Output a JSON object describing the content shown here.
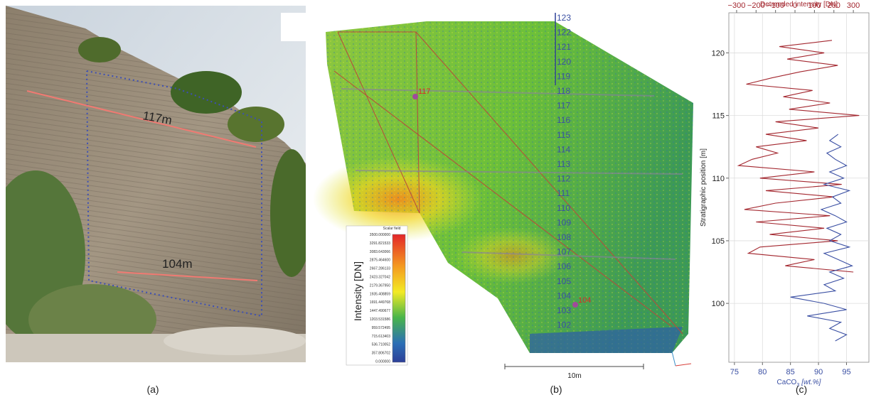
{
  "panel_a": {
    "label": "(a)",
    "annotations": [
      "117m",
      "104m"
    ]
  },
  "panel_b": {
    "label": "(b)",
    "markers": [
      "117",
      "104"
    ],
    "strat_labels": [
      123,
      122,
      121,
      120,
      119,
      118,
      117,
      116,
      115,
      114,
      113,
      112,
      111,
      110,
      109,
      108,
      107,
      106,
      105,
      104,
      103,
      102
    ],
    "colorbar": {
      "title": "Scalar field",
      "axis_label": "Intensity [DN]",
      "labels": [
        "3500.000000",
        "3291.821533",
        "3083.643066",
        "2875.464600",
        "2667.286133",
        "2423.327042",
        "2179.367950",
        "1935.408859",
        "1691.449768",
        "1447.490677",
        "1203.531586",
        "959.572495",
        "715.613403",
        "536.710052",
        "357.806702",
        "0.000000"
      ]
    },
    "scale_bar": "10m"
  },
  "chart_data": {
    "type": "line",
    "label": "(c)",
    "y_label": "Stratigraphic position [m]",
    "x_label": {
      "main": "CaCO",
      "sub": "3",
      "unit": "[wt.%]"
    },
    "x2_label": "Detrended intensity [DN]",
    "ylim": [
      95.3,
      123.2
    ],
    "yticks": [
      100,
      105,
      110,
      115,
      120
    ],
    "xlim": [
      74,
      99
    ],
    "xticks": [
      75,
      80,
      85,
      90,
      95
    ],
    "x2lim": [
      -340,
      380
    ],
    "x2ticks": [
      {
        "value": -300,
        "label": "−300"
      },
      {
        "value": -200,
        "label": "−200"
      },
      {
        "value": -100,
        "label": "−100"
      },
      0,
      100,
      200,
      300
    ],
    "grid": true,
    "series": [
      {
        "color": "#a3262e",
        "axis": "x2",
        "positions": [
          121,
          120.5,
          120,
          119.5,
          119,
          118.5,
          118,
          117.5,
          117,
          116.5,
          116,
          115.5,
          115,
          114.5,
          114,
          113.5,
          113,
          112.5,
          112,
          111.5,
          111,
          110.5,
          110,
          109.5,
          109,
          108.5,
          108,
          107.5,
          107,
          106.5,
          106,
          105.5,
          105,
          104.5,
          104,
          103.5,
          103,
          102.5
        ],
        "values": [
          190,
          -80,
          150,
          -40,
          220,
          30,
          -120,
          -250,
          90,
          -60,
          180,
          -30,
          330,
          -100,
          120,
          -150,
          60,
          -200,
          -90,
          -220,
          -290,
          100,
          -180,
          240,
          -150,
          200,
          -100,
          -260,
          180,
          -200,
          150,
          -130,
          220,
          -180,
          -240,
          100,
          -50,
          300
        ]
      },
      {
        "color": "#3a4fa3",
        "axis": "x",
        "positions": [
          113.5,
          113,
          112.5,
          112,
          111.5,
          111,
          110.5,
          110,
          109.5,
          109,
          108.5,
          108,
          107.5,
          107,
          106.5,
          106,
          105.5,
          105,
          104.5,
          104,
          103.5,
          103,
          102.5,
          102,
          101.5,
          101,
          100.5,
          100,
          99.5,
          99,
          98.5,
          98,
          97.5,
          97
        ],
        "values": [
          93.5,
          92,
          94,
          91.5,
          93,
          95,
          92,
          94.5,
          91,
          95.5,
          92.5,
          94,
          90.5,
          93,
          95,
          91.5,
          94,
          92,
          95.5,
          91,
          93.5,
          96,
          92,
          94.5,
          91,
          93,
          85,
          91,
          95,
          88,
          94,
          92,
          95,
          93
        ]
      }
    ]
  }
}
